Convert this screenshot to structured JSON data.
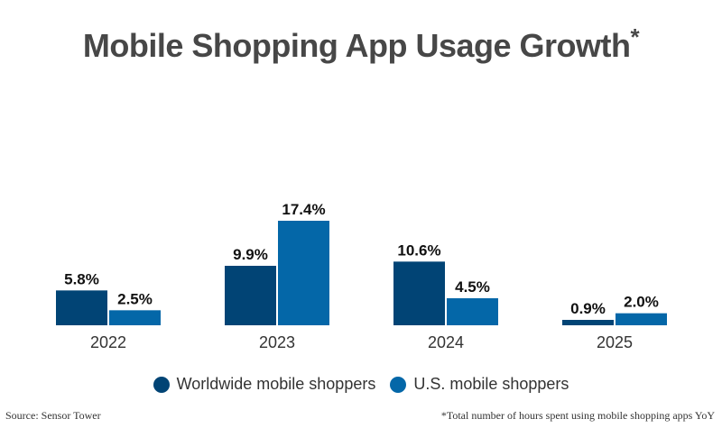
{
  "header": {
    "title": "Mobile Shopping App Usage Growth",
    "title_mark": "*"
  },
  "colors": {
    "worldwide": "#014475",
    "us": "#0467A8",
    "baseline": "#d0d0d0"
  },
  "chart_data": {
    "type": "bar",
    "categories": [
      "2022",
      "2023",
      "2024",
      "2025"
    ],
    "series": [
      {
        "name": "Worldwide mobile shoppers",
        "values": [
          5.8,
          9.9,
          10.6,
          0.9
        ],
        "labels": [
          "5.8%",
          "9.9%",
          "10.6%",
          "0.9%"
        ]
      },
      {
        "name": "U.S. mobile shoppers",
        "values": [
          2.5,
          17.4,
          4.5,
          2.0
        ],
        "labels": [
          "2.5%",
          "17.4%",
          "4.5%",
          "2.0%"
        ]
      }
    ],
    "ylim": [
      0,
      17.4
    ],
    "legend_position": "bottom",
    "grid": false
  },
  "footer": {
    "source": "Source: Sensor Tower",
    "note": "*Total number of hours spent using mobile shopping apps YoY"
  }
}
